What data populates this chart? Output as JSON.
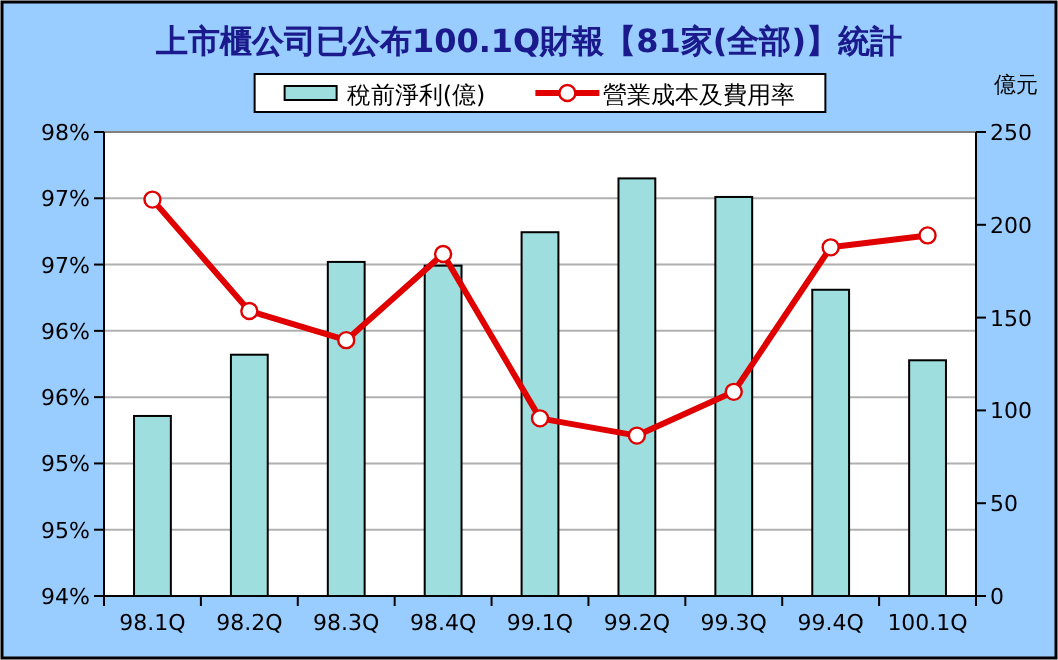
{
  "chart_data": {
    "type": "bar",
    "title": "上市櫃公司已公布100.1Q財報【81家(全部)】統計",
    "y2label": "億元",
    "categories": [
      "98.1Q",
      "98.2Q",
      "98.3Q",
      "98.4Q",
      "99.1Q",
      "99.2Q",
      "99.3Q",
      "99.4Q",
      "100.1Q"
    ],
    "series": [
      {
        "name": "稅前淨利(億)",
        "axis": "y2",
        "color": "#9fdede",
        "values": [
          97,
          130,
          180,
          178,
          196,
          225,
          215,
          165,
          127
        ]
      },
      {
        "name": "營業成本及費用率",
        "type": "line",
        "axis": "y",
        "color": "#e00000",
        "marker": "circle",
        "values": [
          96.99,
          96.15,
          95.93,
          96.58,
          95.34,
          95.21,
          95.54,
          96.63,
          96.72
        ]
      }
    ],
    "ylim": [
      94,
      97.5
    ],
    "yticks": [
      {
        "value": 94,
        "label": "94%"
      },
      {
        "value": 94.5,
        "label": "95%"
      },
      {
        "value": 95,
        "label": "95%"
      },
      {
        "value": 95.5,
        "label": "96%"
      },
      {
        "value": 96,
        "label": "96%"
      },
      {
        "value": 96.5,
        "label": "97%"
      },
      {
        "value": 97,
        "label": "97%"
      },
      {
        "value": 97.5,
        "label": "98%"
      }
    ],
    "y2lim": [
      0,
      250
    ],
    "y2ticks": [
      0,
      50,
      100,
      150,
      200,
      250
    ],
    "grid": "y",
    "legend": "top"
  }
}
